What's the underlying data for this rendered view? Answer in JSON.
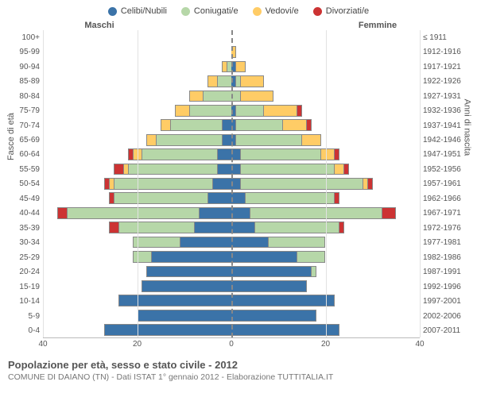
{
  "legend": [
    {
      "label": "Celibi/Nubili",
      "color": "#3b73a8"
    },
    {
      "label": "Coniugati/e",
      "color": "#b6d7a8"
    },
    {
      "label": "Vedovi/e",
      "color": "#ffcc66"
    },
    {
      "label": "Divorziati/e",
      "color": "#cc3333"
    }
  ],
  "header_male": "Maschi",
  "header_female": "Femmine",
  "y_left_title": "Fasce di età",
  "y_right_title": "Anni di nascita",
  "x_max": 40,
  "x_ticks": [
    40,
    20,
    0,
    20,
    40
  ],
  "age_groups": [
    "100+",
    "95-99",
    "90-94",
    "85-89",
    "80-84",
    "75-79",
    "70-74",
    "65-69",
    "60-64",
    "55-59",
    "50-54",
    "45-49",
    "40-44",
    "35-39",
    "30-34",
    "25-29",
    "20-24",
    "15-19",
    "10-14",
    "5-9",
    "0-4"
  ],
  "birth_years": [
    "≤ 1911",
    "1912-1916",
    "1917-1921",
    "1922-1926",
    "1927-1931",
    "1932-1936",
    "1937-1941",
    "1942-1946",
    "1947-1951",
    "1952-1956",
    "1957-1961",
    "1962-1966",
    "1967-1971",
    "1972-1976",
    "1977-1981",
    "1982-1986",
    "1987-1991",
    "1992-1996",
    "1997-2001",
    "2002-2006",
    "2007-2011"
  ],
  "male": [
    {
      "celibi": 0,
      "coniugati": 0,
      "vedovi": 0,
      "divorziati": 0
    },
    {
      "celibi": 0,
      "coniugati": 0,
      "vedovi": 0,
      "divorziati": 0
    },
    {
      "celibi": 0,
      "coniugati": 1,
      "vedovi": 1,
      "divorziati": 0
    },
    {
      "celibi": 0,
      "coniugati": 3,
      "vedovi": 2,
      "divorziati": 0
    },
    {
      "celibi": 0,
      "coniugati": 6,
      "vedovi": 3,
      "divorziati": 0
    },
    {
      "celibi": 0,
      "coniugati": 9,
      "vedovi": 3,
      "divorziati": 0
    },
    {
      "celibi": 2,
      "coniugati": 11,
      "vedovi": 2,
      "divorziati": 0
    },
    {
      "celibi": 2,
      "coniugati": 14,
      "vedovi": 2,
      "divorziati": 0
    },
    {
      "celibi": 3,
      "coniugati": 16,
      "vedovi": 2,
      "divorziati": 1
    },
    {
      "celibi": 3,
      "coniugati": 19,
      "vedovi": 1,
      "divorziati": 2
    },
    {
      "celibi": 4,
      "coniugati": 21,
      "vedovi": 1,
      "divorziati": 1
    },
    {
      "celibi": 5,
      "coniugati": 20,
      "vedovi": 0,
      "divorziati": 1
    },
    {
      "celibi": 7,
      "coniugati": 28,
      "vedovi": 0,
      "divorziati": 2
    },
    {
      "celibi": 8,
      "coniugati": 16,
      "vedovi": 0,
      "divorziati": 2
    },
    {
      "celibi": 11,
      "coniugati": 10,
      "vedovi": 0,
      "divorziati": 0
    },
    {
      "celibi": 17,
      "coniugati": 4,
      "vedovi": 0,
      "divorziati": 0
    },
    {
      "celibi": 18,
      "coniugati": 0,
      "vedovi": 0,
      "divorziati": 0
    },
    {
      "celibi": 19,
      "coniugati": 0,
      "vedovi": 0,
      "divorziati": 0
    },
    {
      "celibi": 24,
      "coniugati": 0,
      "vedovi": 0,
      "divorziati": 0
    },
    {
      "celibi": 20,
      "coniugati": 0,
      "vedovi": 0,
      "divorziati": 0
    },
    {
      "celibi": 27,
      "coniugati": 0,
      "vedovi": 0,
      "divorziati": 0
    }
  ],
  "female": [
    {
      "celibi": 0,
      "coniugati": 0,
      "vedovi": 0,
      "divorziati": 0
    },
    {
      "celibi": 0,
      "coniugati": 0,
      "vedovi": 1,
      "divorziati": 0
    },
    {
      "celibi": 1,
      "coniugati": 0,
      "vedovi": 2,
      "divorziati": 0
    },
    {
      "celibi": 1,
      "coniugati": 1,
      "vedovi": 5,
      "divorziati": 0
    },
    {
      "celibi": 0,
      "coniugati": 2,
      "vedovi": 7,
      "divorziati": 0
    },
    {
      "celibi": 1,
      "coniugati": 6,
      "vedovi": 7,
      "divorziati": 1
    },
    {
      "celibi": 1,
      "coniugati": 10,
      "vedovi": 5,
      "divorziati": 1
    },
    {
      "celibi": 1,
      "coniugati": 14,
      "vedovi": 4,
      "divorziati": 0
    },
    {
      "celibi": 2,
      "coniugati": 17,
      "vedovi": 3,
      "divorziati": 1
    },
    {
      "celibi": 2,
      "coniugati": 20,
      "vedovi": 2,
      "divorziati": 1
    },
    {
      "celibi": 2,
      "coniugati": 26,
      "vedovi": 1,
      "divorziati": 1
    },
    {
      "celibi": 3,
      "coniugati": 19,
      "vedovi": 0,
      "divorziati": 1
    },
    {
      "celibi": 4,
      "coniugati": 28,
      "vedovi": 0,
      "divorziati": 3
    },
    {
      "celibi": 5,
      "coniugati": 18,
      "vedovi": 0,
      "divorziati": 1
    },
    {
      "celibi": 8,
      "coniugati": 12,
      "vedovi": 0,
      "divorziati": 0
    },
    {
      "celibi": 14,
      "coniugati": 6,
      "vedovi": 0,
      "divorziati": 0
    },
    {
      "celibi": 17,
      "coniugati": 1,
      "vedovi": 0,
      "divorziati": 0
    },
    {
      "celibi": 16,
      "coniugati": 0,
      "vedovi": 0,
      "divorziati": 0
    },
    {
      "celibi": 22,
      "coniugati": 0,
      "vedovi": 0,
      "divorziati": 0
    },
    {
      "celibi": 18,
      "coniugati": 0,
      "vedovi": 0,
      "divorziati": 0
    },
    {
      "celibi": 23,
      "coniugati": 0,
      "vedovi": 0,
      "divorziati": 0
    }
  ],
  "colors": {
    "celibi": "#3b73a8",
    "coniugati": "#b6d7a8",
    "vedovi": "#ffcc66",
    "divorziati": "#cc3333",
    "seg_border": "#888888"
  },
  "footer": {
    "title": "Popolazione per età, sesso e stato civile - 2012",
    "subtitle": "COMUNE DI DAIANO (TN) - Dati ISTAT 1° gennaio 2012 - Elaborazione TUTTITALIA.IT"
  }
}
